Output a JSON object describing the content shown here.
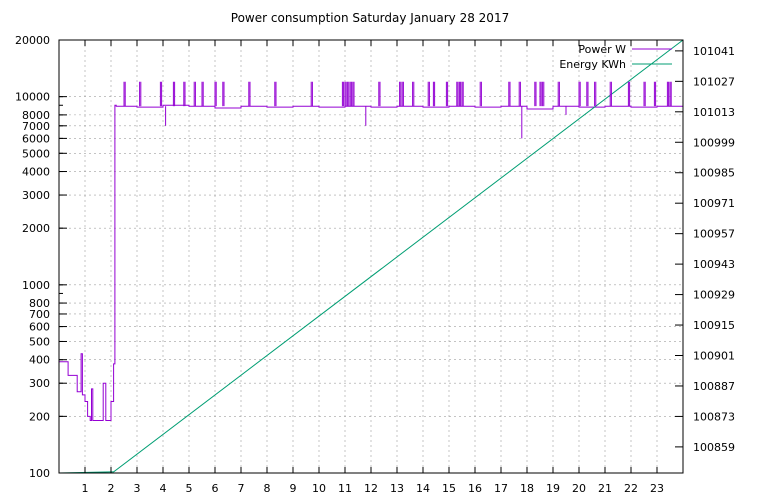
{
  "chart_data": {
    "type": "line",
    "title": "Power consumption Saturday January 28 2017",
    "grid": true,
    "legend_position": "top-right",
    "x_axis": {
      "range": [
        0,
        24
      ],
      "ticks": [
        1,
        2,
        3,
        4,
        5,
        6,
        7,
        8,
        9,
        10,
        11,
        12,
        13,
        14,
        15,
        16,
        17,
        18,
        19,
        20,
        21,
        22,
        23
      ],
      "tick_labels": [
        "1",
        "2",
        "3",
        "4",
        "5",
        "6",
        "7",
        "8",
        "9",
        "10",
        "11",
        "12",
        "13",
        "14",
        "15",
        "16",
        "17",
        "18",
        "19",
        "20",
        "21",
        "22",
        "23"
      ]
    },
    "y_left": {
      "scale": "log",
      "range": [
        100,
        20000
      ],
      "ticks": [
        100,
        200,
        300,
        400,
        500,
        600,
        700,
        800,
        1000,
        2000,
        3000,
        4000,
        5000,
        6000,
        7000,
        8000,
        10000,
        20000
      ],
      "tick_labels": [
        "100",
        "200",
        "300",
        "400",
        "500",
        "600",
        "700",
        "800",
        "1000",
        "2000",
        "3000",
        "4000",
        "5000",
        "6000",
        "7000",
        "8000",
        "10000",
        "20000"
      ]
    },
    "y_right": {
      "scale": "linear",
      "range": [
        100847,
        101046
      ],
      "ticks": [
        100859,
        100873,
        100887,
        100901,
        100915,
        100929,
        100943,
        100957,
        100971,
        100985,
        100999,
        101013,
        101027,
        101041
      ],
      "tick_labels": [
        "100859",
        "100873",
        "100887",
        "100901",
        "100915",
        "100929",
        "100943",
        "100957",
        "100971",
        "100985",
        "100999",
        "101013",
        "101027",
        "101041"
      ]
    },
    "series": [
      {
        "name": "Power W",
        "color": "#9400d3",
        "axis": "y_left",
        "x": [
          0,
          0.25,
          0.35,
          0.4,
          0.55,
          0.65,
          0.7,
          0.75,
          0.8,
          0.85,
          0.9,
          1.0,
          1.1,
          1.2,
          1.25,
          1.3,
          1.5,
          1.7,
          1.8,
          1.95,
          2.0,
          2.05,
          2.1,
          2.15,
          2.2,
          3.0,
          4.0,
          5.0,
          6.0,
          7.0,
          8.0,
          9.0,
          10.0,
          11.0,
          12.0,
          13.0,
          14.0,
          15.0,
          16.0,
          17.0,
          18.0,
          19.0,
          20.0,
          21.0,
          22.0,
          23.0,
          24.0
        ],
        "y": [
          390,
          390,
          330,
          330,
          330,
          330,
          270,
          270,
          270,
          430,
          260,
          240,
          200,
          190,
          280,
          190,
          190,
          300,
          190,
          190,
          240,
          240,
          380,
          9000,
          8900,
          8800,
          9000,
          8900,
          8700,
          8900,
          8800,
          8900,
          8800,
          8900,
          8800,
          8900,
          8800,
          8900,
          8800,
          8900,
          8600,
          8900,
          8800,
          8900,
          8800,
          8900,
          8800
        ]
      },
      {
        "name": "Energy KWh",
        "color": "#009e73",
        "axis": "y_right",
        "x": [
          0,
          2.0,
          2.1,
          24.0
        ],
        "y": [
          100847,
          100847.5,
          100847.5,
          101046
        ]
      }
    ],
    "power_spikes": {
      "color": "#9400d3",
      "peak_value": 12000,
      "x": [
        2.5,
        3.1,
        3.9,
        4.4,
        4.8,
        5.2,
        5.5,
        6.0,
        6.3,
        7.3,
        8.3,
        9.7,
        10.9,
        11.0,
        11.1,
        11.2,
        11.3,
        12.3,
        13.1,
        13.2,
        13.6,
        14.2,
        14.4,
        14.9,
        15.3,
        15.4,
        15.5,
        16.2,
        17.3,
        17.7,
        18.3,
        18.5,
        18.6,
        19.2,
        20.0,
        20.3,
        20.6,
        21.2,
        21.9,
        22.5,
        22.9,
        23.4,
        23.5
      ]
    },
    "power_dips": {
      "color": "#9400d3",
      "x": [
        4.1,
        11.8,
        17.8,
        19.5
      ],
      "y": [
        7000,
        7000,
        6000,
        8000
      ]
    }
  }
}
